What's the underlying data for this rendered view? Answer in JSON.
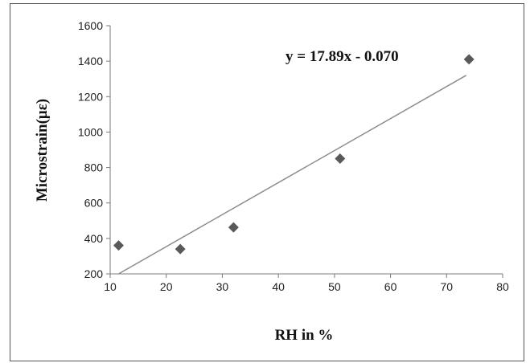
{
  "chart_data": {
    "type": "scatter",
    "xlabel": "RH in %",
    "ylabel": "Microstrain(με)",
    "xlim": [
      10,
      80
    ],
    "ylim": [
      200,
      1600
    ],
    "xticks": [
      "10",
      "20",
      "30",
      "40",
      "50",
      "60",
      "70",
      "80"
    ],
    "yticks": [
      "200",
      "400",
      "600",
      "800",
      "1000",
      "1200",
      "1400",
      "1600"
    ],
    "grid": false,
    "series": [
      {
        "marker": "diamond",
        "color": "#595959",
        "points": [
          {
            "x": 11.5,
            "y": 360
          },
          {
            "x": 22.5,
            "y": 340
          },
          {
            "x": 32,
            "y": 462
          },
          {
            "x": 51,
            "y": 850
          },
          {
            "x": 74,
            "y": 1410
          }
        ]
      }
    ],
    "trendline": {
      "color": "#8c8c8c",
      "x_start": 11.5,
      "y_start": 200,
      "x_end": 73.5,
      "y_end": 1320
    },
    "equation_text": "y = 17.89x - 0.070"
  }
}
